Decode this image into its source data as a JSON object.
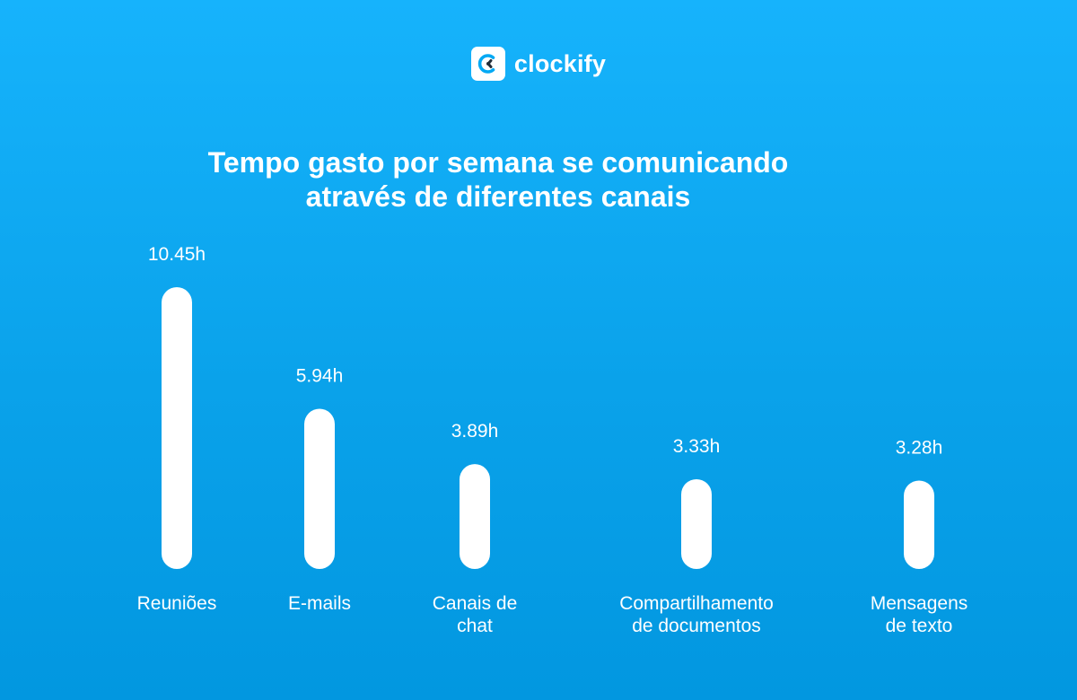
{
  "brand": {
    "name": "clockify",
    "icon": "clockify-logo-icon"
  },
  "colors": {
    "background_top": "#16b3fc",
    "background_bottom": "#0297e0",
    "bars": "#ffffff",
    "text": "#ffffff"
  },
  "chart_data": {
    "type": "bar",
    "title": "Tempo gasto por semana se comunicando através de diferentes canais",
    "title_lines": [
      "Tempo gasto por semana se comunicando",
      "através de diferentes canais"
    ],
    "xlabel": "",
    "ylabel": "",
    "unit": "h",
    "grid": false,
    "legend": "none",
    "categories": [
      [
        "Reuniões"
      ],
      [
        "E-mails"
      ],
      [
        "Canais de",
        "chat"
      ],
      [
        "Compartilhamento",
        "de documentos"
      ],
      [
        "Mensagens",
        "de texto"
      ]
    ],
    "values": [
      10.45,
      5.94,
      3.89,
      3.33,
      3.28
    ],
    "value_labels": [
      "10.45h",
      "5.94h",
      "3.89h",
      "3.33h",
      "3.28h"
    ]
  }
}
